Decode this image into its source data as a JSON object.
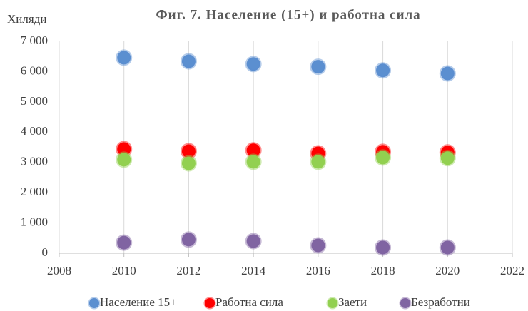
{
  "chart_data": {
    "type": "scatter",
    "title": "Фиг. 7. Население (15+) и работна сила",
    "ylabel": "Хиляди",
    "x": [
      2010,
      2012,
      2014,
      2016,
      2018,
      2020
    ],
    "series": [
      {
        "name": "Население 15+",
        "color": "#5b8fd0",
        "values": [
          6460,
          6340,
          6250,
          6160,
          6040,
          5940
        ]
      },
      {
        "name": "Работна сила",
        "color": "#ff0000",
        "values": [
          3440,
          3370,
          3400,
          3300,
          3350,
          3330
        ]
      },
      {
        "name": "Заети",
        "color": "#92d050",
        "values": [
          3090,
          2970,
          3020,
          3020,
          3160,
          3140
        ]
      },
      {
        "name": "Безработни",
        "color": "#8064a2",
        "values": [
          350,
          450,
          400,
          260,
          190,
          190
        ]
      }
    ],
    "xlim": [
      2008,
      2022
    ],
    "xticks": [
      2008,
      2010,
      2012,
      2014,
      2016,
      2018,
      2020,
      2022
    ],
    "ylim": [
      0,
      7000
    ],
    "yticks": [
      0,
      {
        "value": 1000,
        "label": "1 000"
      },
      {
        "value": 2000,
        "label": "2 000"
      },
      {
        "value": 3000,
        "label": "3 000"
      },
      {
        "value": 4000,
        "label": "4 000"
      },
      {
        "value": 5000,
        "label": "5 000"
      },
      {
        "value": 6000,
        "label": "6 000"
      },
      {
        "value": 7000,
        "label": "7 000"
      }
    ],
    "grid": "x",
    "legend": "bottom"
  }
}
